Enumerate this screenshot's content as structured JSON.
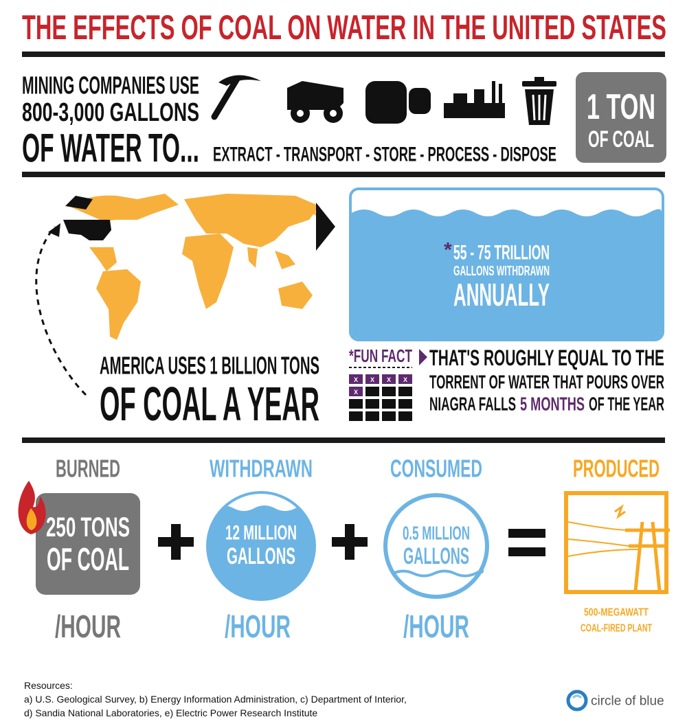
{
  "title": "THE EFFECTS OF COAL ON WATER IN THE UNITED STATES",
  "mining": {
    "lines": [
      "MINING COMPANIES USE",
      "800-3,000 GALLONS",
      "OF WATER TO..."
    ],
    "steps": "EXTRACT - TRANSPORT - STORE - PROCESS - DISPOSE",
    "badge": [
      "1 TON",
      "OF COAL"
    ]
  },
  "america": [
    "AMERICA USES 1 BILLION TONS",
    "OF COAL A YEAR"
  ],
  "water": {
    "asterisk": "*",
    "lines": [
      "55 - 75 TRILLION",
      "GALLONS WITHDRAWN",
      "ANNUALLY"
    ]
  },
  "fun_fact": {
    "label": "*FUN FACT",
    "calendar_mark": "X",
    "lines": [
      "THAT'S ROUGHLY EQUAL TO THE",
      "TORRENT OF WATER THAT POURS OVER"
    ],
    "last_line": [
      "NIAGRA FALLS",
      "5 MONTHS",
      "OF THE YEAR"
    ]
  },
  "equation": {
    "burned": {
      "heading": "BURNED",
      "lines": [
        "250 TONS",
        "OF COAL"
      ],
      "rate": "/HOUR"
    },
    "withdrawn": {
      "heading": "WITHDRAWN",
      "lines": [
        "12 MILLION",
        "GALLONS"
      ],
      "rate": "/HOUR"
    },
    "consumed": {
      "heading": "CONSUMED",
      "lines": [
        "0.5 MILLION",
        "GALLONS"
      ],
      "rate": "/HOUR"
    },
    "produced": {
      "heading": "PRODUCED",
      "lines": [
        "500-MEGAWATT",
        "COAL-FIRED PLANT"
      ]
    }
  },
  "resources": {
    "heading": "Resources:",
    "lines": [
      "a) U.S. Geological Survey, b) Energy Information Administration, c) Department of Interior,",
      "d) Sandia National Laboratories, e) Electric Power Research Institute"
    ]
  },
  "logo": "circle of blue"
}
